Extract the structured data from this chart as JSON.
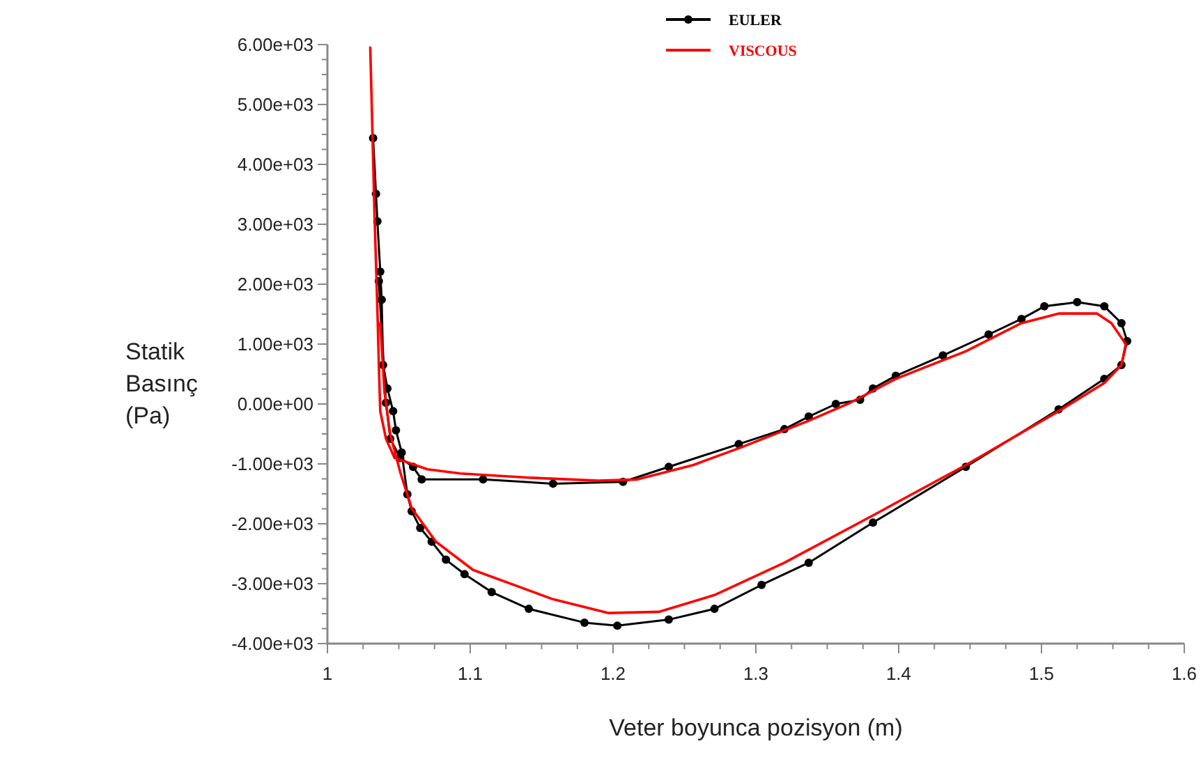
{
  "chart_data": {
    "type": "line",
    "xlabel": "Veter boyunca pozisyon (m)",
    "ylabel": "Statik Basınç (Pa)",
    "xlim": [
      1,
      1.6
    ],
    "ylim": [
      -4000,
      6000
    ],
    "xticks": [
      1,
      {
        "value": 1.025,
        "label": null
      },
      {
        "value": 1.05,
        "label": null
      },
      {
        "value": 1.075,
        "label": null
      },
      1.1,
      {
        "value": 1.125,
        "label": null
      },
      {
        "value": 1.15,
        "label": null
      },
      {
        "value": 1.175,
        "label": null
      },
      1.2,
      {
        "value": 1.225,
        "label": null
      },
      {
        "value": 1.25,
        "label": null
      },
      {
        "value": 1.275,
        "label": null
      },
      1.3,
      {
        "value": 1.325,
        "label": null
      },
      {
        "value": 1.35,
        "label": null
      },
      {
        "value": 1.375,
        "label": null
      },
      1.4,
      {
        "value": 1.425,
        "label": null
      },
      {
        "value": 1.45,
        "label": null
      },
      {
        "value": 1.475,
        "label": null
      },
      1.5,
      {
        "value": 1.525,
        "label": null
      },
      {
        "value": 1.55,
        "label": null
      },
      {
        "value": 1.575,
        "label": null
      },
      1.6
    ],
    "yticks": [
      {
        "value": -4000,
        "label": "-4.00e+03"
      },
      {
        "value": -3750,
        "label": null
      },
      {
        "value": -3500,
        "label": null
      },
      {
        "value": -3250,
        "label": null
      },
      {
        "value": -3000,
        "label": "-3.00e+03"
      },
      {
        "value": -2750,
        "label": null
      },
      {
        "value": -2500,
        "label": null
      },
      {
        "value": -2250,
        "label": null
      },
      {
        "value": -2000,
        "label": "-2.00e+03"
      },
      {
        "value": -1750,
        "label": null
      },
      {
        "value": -1500,
        "label": null
      },
      {
        "value": -1250,
        "label": null
      },
      {
        "value": -1000,
        "label": "-1.00e+03"
      },
      {
        "value": -750,
        "label": null
      },
      {
        "value": -500,
        "label": null
      },
      {
        "value": -250,
        "label": null
      },
      {
        "value": 0,
        "label": "0.00e+00"
      },
      {
        "value": 250,
        "label": null
      },
      {
        "value": 500,
        "label": null
      },
      {
        "value": 750,
        "label": null
      },
      {
        "value": 1000,
        "label": "1.00e+03"
      },
      {
        "value": 1250,
        "label": null
      },
      {
        "value": 1500,
        "label": null
      },
      {
        "value": 1750,
        "label": null
      },
      {
        "value": 2000,
        "label": "2.00e+03"
      },
      {
        "value": 2250,
        "label": null
      },
      {
        "value": 2500,
        "label": null
      },
      {
        "value": 2750,
        "label": null
      },
      {
        "value": 3000,
        "label": "3.00e+03"
      },
      {
        "value": 3250,
        "label": null
      },
      {
        "value": 3500,
        "label": null
      },
      {
        "value": 3750,
        "label": null
      },
      {
        "value": 4000,
        "label": "4.00e+03"
      },
      {
        "value": 4250,
        "label": null
      },
      {
        "value": 4500,
        "label": null
      },
      {
        "value": 4750,
        "label": null
      },
      {
        "value": 5000,
        "label": "5.00e+03"
      },
      {
        "value": 5250,
        "label": null
      },
      {
        "value": 5500,
        "label": null
      },
      {
        "value": 5750,
        "label": null
      },
      {
        "value": 6000,
        "label": "6.00e+03"
      }
    ],
    "grid": false,
    "legend": "top",
    "series": [
      {
        "name": "EULER",
        "color": "#000000",
        "marker": "circle",
        "x": [
          1.032,
          1.034,
          1.035,
          1.037,
          1.038,
          1.039,
          1.042,
          1.046,
          1.048,
          1.052,
          1.056,
          1.059,
          1.065,
          1.073,
          1.083,
          1.096,
          1.115,
          1.141,
          1.18,
          1.203,
          1.239,
          1.271,
          1.304,
          1.337,
          1.382,
          1.447,
          1.512,
          1.544,
          1.556,
          1.56,
          1.556,
          1.544,
          1.525,
          1.502,
          1.486,
          1.463,
          1.431,
          1.398,
          1.382,
          1.373,
          1.356,
          1.337,
          1.32,
          1.288,
          1.239,
          1.207,
          1.158,
          1.109,
          1.066,
          1.06,
          1.051,
          1.044,
          1.041,
          1.036
        ],
        "values": [
          4440,
          3510,
          3050,
          2210,
          1740,
          650,
          260,
          -120,
          -440,
          -810,
          -1510,
          -1790,
          -2070,
          -2300,
          -2600,
          -2840,
          -3140,
          -3420,
          -3650,
          -3700,
          -3600,
          -3420,
          -3020,
          -2650,
          -1980,
          -1050,
          -90,
          420,
          650,
          1050,
          1350,
          1630,
          1700,
          1630,
          1420,
          1160,
          810,
          470,
          260,
          70,
          0,
          -210,
          -420,
          -670,
          -1050,
          -1300,
          -1330,
          -1260,
          -1260,
          -1050,
          -900,
          -580,
          20,
          2050
        ]
      },
      {
        "name": "VISCOUS",
        "color": "#ff0000",
        "marker": "none",
        "x": [
          1.03,
          1.033,
          1.035,
          1.036,
          1.037,
          1.041,
          1.047,
          1.07,
          1.093,
          1.141,
          1.19,
          1.217,
          1.256,
          1.288,
          1.337,
          1.366,
          1.398,
          1.447,
          1.486,
          1.512,
          1.539,
          1.549,
          1.559,
          1.556,
          1.544,
          1.512,
          1.447,
          1.382,
          1.32,
          1.271,
          1.232,
          1.197,
          1.158,
          1.102,
          1.076,
          1.059,
          1.051,
          1.044,
          1.04,
          1.037
        ],
        "values": [
          5950,
          3140,
          1580,
          650,
          -120,
          -580,
          -900,
          -1090,
          -1160,
          -1230,
          -1280,
          -1260,
          -1020,
          -740,
          -280,
          20,
          420,
          880,
          1350,
          1510,
          1510,
          1350,
          1000,
          650,
          350,
          -120,
          -1020,
          -1860,
          -2650,
          -3190,
          -3470,
          -3490,
          -3260,
          -2770,
          -2300,
          -1740,
          -1140,
          -510,
          190,
          1350
        ]
      }
    ]
  }
}
